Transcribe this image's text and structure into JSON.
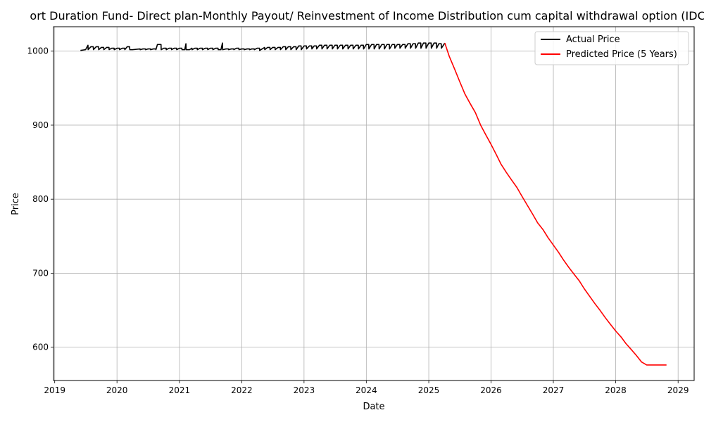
{
  "chart_data": {
    "type": "line",
    "title": "ort Duration Fund- Direct plan-Monthly Payout/ Reinvestment of Income Distribution cum capital withdrawal option (IDCW",
    "xlabel": "Date",
    "ylabel": "Price",
    "x_ticks": [
      "2019",
      "2020",
      "2021",
      "2022",
      "2023",
      "2024",
      "2025",
      "2026",
      "2027",
      "2028",
      "2029"
    ],
    "y_ticks": [
      600,
      700,
      800,
      900,
      1000
    ],
    "xlim": [
      "2018-12-25",
      "2029-04-05"
    ],
    "ylim": [
      555,
      1033
    ],
    "grid": true,
    "legend": {
      "position": "top-right"
    },
    "series": [
      {
        "name": "Actual Price",
        "color": "#000000",
        "x": [
          "2019-06-01",
          "2019-07-01",
          "2019-07-15",
          "2019-07-16",
          "2019-08-01",
          "2019-08-15",
          "2019-08-16",
          "2019-09-01",
          "2019-09-15",
          "2019-09-16",
          "2019-10-01",
          "2019-10-15",
          "2019-10-16",
          "2019-11-01",
          "2019-11-15",
          "2019-11-16",
          "2019-12-01",
          "2019-12-15",
          "2019-12-16",
          "2020-01-01",
          "2020-01-15",
          "2020-01-16",
          "2020-02-01",
          "2020-02-15",
          "2020-02-16",
          "2020-03-01",
          "2020-03-15",
          "2020-03-16",
          "2020-04-01",
          "2020-05-15",
          "2020-05-16",
          "2020-06-01",
          "2020-06-15",
          "2020-06-16",
          "2020-07-01",
          "2020-07-15",
          "2020-07-16",
          "2020-08-01",
          "2020-08-15",
          "2020-08-16",
          "2020-08-25",
          "2020-09-15",
          "2020-09-16",
          "2020-10-01",
          "2020-10-15",
          "2020-10-16",
          "2020-11-01",
          "2020-11-15",
          "2020-11-16",
          "2020-12-01",
          "2020-12-15",
          "2020-12-16",
          "2021-01-01",
          "2021-01-15",
          "2021-01-16",
          "2021-02-01",
          "2021-02-08",
          "2021-02-09",
          "2021-03-01",
          "2021-03-15",
          "2021-03-16",
          "2021-04-01",
          "2021-04-15",
          "2021-04-16",
          "2021-05-01",
          "2021-05-15",
          "2021-05-16",
          "2021-06-01",
          "2021-06-15",
          "2021-06-16",
          "2021-07-01",
          "2021-07-15",
          "2021-07-16",
          "2021-08-01",
          "2021-08-15",
          "2021-08-16",
          "2021-09-01",
          "2021-09-10",
          "2021-09-11",
          "2021-10-01",
          "2021-10-15",
          "2021-10-16",
          "2021-11-01",
          "2021-11-15",
          "2021-11-16",
          "2021-12-01",
          "2021-12-15",
          "2021-12-16",
          "2022-01-01",
          "2022-01-15",
          "2022-01-16",
          "2022-02-01",
          "2022-02-15",
          "2022-02-16",
          "2022-03-01",
          "2022-03-15",
          "2022-03-16",
          "2022-04-01",
          "2022-04-15",
          "2022-04-16",
          "2022-05-15",
          "2022-05-16",
          "2022-06-01",
          "2022-06-15",
          "2022-06-16",
          "2022-07-01",
          "2022-07-15",
          "2022-07-16",
          "2022-08-01",
          "2022-08-15",
          "2022-08-16",
          "2022-09-01",
          "2022-09-15",
          "2022-09-16",
          "2022-10-01",
          "2022-10-15",
          "2022-10-16",
          "2022-11-01",
          "2022-11-15",
          "2022-11-16",
          "2022-12-01",
          "2022-12-15",
          "2022-12-16",
          "2023-01-01",
          "2023-01-15",
          "2023-01-16",
          "2023-02-01",
          "2023-02-15",
          "2023-02-16",
          "2023-03-01",
          "2023-03-15",
          "2023-03-16",
          "2023-04-01",
          "2023-04-15",
          "2023-04-16",
          "2023-05-01",
          "2023-05-15",
          "2023-05-16",
          "2023-06-01",
          "2023-06-15",
          "2023-06-16",
          "2023-07-01",
          "2023-07-15",
          "2023-07-16",
          "2023-08-01",
          "2023-08-15",
          "2023-08-16",
          "2023-09-01",
          "2023-09-15",
          "2023-09-16",
          "2023-10-01",
          "2023-10-15",
          "2023-10-16",
          "2023-11-01",
          "2023-11-15",
          "2023-11-16",
          "2023-12-01",
          "2023-12-15",
          "2023-12-16",
          "2024-01-01",
          "2024-01-15",
          "2024-01-16",
          "2024-02-01",
          "2024-02-15",
          "2024-02-16",
          "2024-03-01",
          "2024-03-15",
          "2024-03-16",
          "2024-04-01",
          "2024-04-15",
          "2024-04-16",
          "2024-05-01",
          "2024-05-15",
          "2024-05-16",
          "2024-06-01",
          "2024-06-15",
          "2024-06-16",
          "2024-07-01",
          "2024-07-15",
          "2024-07-16",
          "2024-08-01",
          "2024-08-15",
          "2024-08-16",
          "2024-09-01",
          "2024-09-15",
          "2024-09-16",
          "2024-10-01",
          "2024-10-15",
          "2024-10-16",
          "2024-11-01",
          "2024-11-15",
          "2024-11-16",
          "2024-12-01",
          "2024-12-15",
          "2024-12-16",
          "2025-01-01",
          "2025-01-15",
          "2025-01-16",
          "2025-02-01",
          "2025-02-15",
          "2025-02-16",
          "2025-03-01",
          "2025-03-15",
          "2025-03-16",
          "2025-04-05"
        ],
        "y": [
          1001,
          1002,
          1008,
          1002,
          1006,
          1006,
          1002,
          1006,
          1006,
          1002,
          1005,
          1005,
          1002,
          1005,
          1005,
          1002,
          1004,
          1004,
          1002,
          1004,
          1004,
          1002,
          1004,
          1004,
          1002,
          1006,
          1006,
          1002,
          1002,
          1003,
          1002,
          1003,
          1003,
          1002,
          1003,
          1003,
          1002,
          1003,
          1003,
          1002,
          1009,
          1009,
          1002,
          1004,
          1004,
          1002,
          1004,
          1004,
          1002,
          1004,
          1004,
          1002,
          1004,
          1004,
          1002,
          1002,
          1010,
          1002,
          1002,
          1004,
          1002,
          1004,
          1004,
          1002,
          1004,
          1004,
          1002,
          1004,
          1004,
          1002,
          1004,
          1004,
          1002,
          1004,
          1004,
          1002,
          1002,
          1011,
          1002,
          1003,
          1003,
          1002,
          1003,
          1003,
          1002,
          1004,
          1004,
          1002,
          1003,
          1003,
          1002,
          1003,
          1003,
          1002,
          1003,
          1003,
          1002,
          1004,
          1004,
          1001,
          1005,
          1002,
          1005,
          1005,
          1002,
          1005,
          1005,
          1002,
          1005,
          1005,
          1002,
          1006,
          1006,
          1002,
          1006,
          1006,
          1002,
          1006,
          1006,
          1002,
          1007,
          1007,
          1002,
          1007,
          1007,
          1003,
          1007,
          1007,
          1003,
          1007,
          1007,
          1003,
          1008,
          1008,
          1003,
          1008,
          1008,
          1003,
          1008,
          1008,
          1003,
          1008,
          1008,
          1003,
          1008,
          1008,
          1003,
          1008,
          1008,
          1003,
          1008,
          1008,
          1003,
          1008,
          1008,
          1003,
          1008,
          1008,
          1003,
          1009,
          1009,
          1003,
          1009,
          1009,
          1003,
          1009,
          1009,
          1003,
          1009,
          1009,
          1003,
          1009,
          1009,
          1003,
          1009,
          1009,
          1004,
          1009,
          1009,
          1004,
          1009,
          1009,
          1004,
          1010,
          1010,
          1004,
          1010,
          1010,
          1004,
          1011,
          1011,
          1004,
          1011,
          1011,
          1004,
          1011,
          1011,
          1004,
          1011,
          1011,
          1004,
          1010,
          1010,
          1004,
          1011
        ]
      },
      {
        "name": "Predicted Price (5 Years)",
        "color": "#ff0000",
        "x": [
          "2025-04-05",
          "2025-05-01",
          "2025-06-01",
          "2025-07-01",
          "2025-08-01",
          "2025-09-01",
          "2025-10-01",
          "2025-11-01",
          "2025-12-01",
          "2026-01-01",
          "2026-02-01",
          "2026-03-01",
          "2026-04-01",
          "2026-05-01",
          "2026-06-01",
          "2026-07-01",
          "2026-08-01",
          "2026-09-01",
          "2026-10-01",
          "2026-11-01",
          "2026-12-01",
          "2027-01-01",
          "2027-02-01",
          "2027-03-01",
          "2027-04-01",
          "2027-05-01",
          "2027-06-01",
          "2027-07-01",
          "2027-08-01",
          "2027-09-01",
          "2027-10-01",
          "2027-11-01",
          "2027-12-01",
          "2028-01-01",
          "2028-02-01",
          "2028-03-01",
          "2028-04-01",
          "2028-05-01",
          "2028-06-01",
          "2028-07-01",
          "2028-08-01",
          "2028-09-01",
          "2028-10-01",
          "2028-10-25"
        ],
        "y": [
          1011,
          993,
          976,
          959,
          942,
          929,
          917,
          900,
          887,
          874,
          860,
          847,
          836,
          826,
          816,
          804,
          792,
          780,
          768,
          759,
          748,
          738,
          728,
          718,
          708,
          699,
          690,
          679,
          669,
          659,
          650,
          640,
          631,
          622,
          614,
          605,
          597,
          589,
          580,
          576,
          576,
          576,
          576,
          576
        ]
      }
    ]
  }
}
